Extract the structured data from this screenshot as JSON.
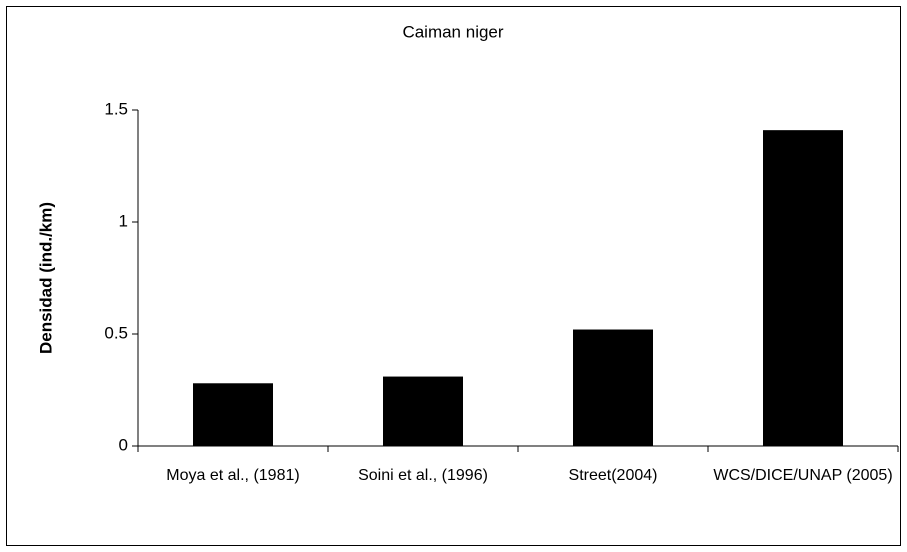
{
  "chart_data": {
    "type": "bar",
    "title": "Caiman niger",
    "y_label": "Densidad (ind./km)",
    "categories": [
      "Moya et al., (1981)",
      "Soini et al., (1996)",
      "Street(2004)",
      "WCS/DICE/UNAP (2005)"
    ],
    "values": [
      0.28,
      0.31,
      0.52,
      1.41
    ],
    "color": "#000000",
    "ylim": [
      0,
      1.5
    ],
    "yticks": [
      0,
      0.5,
      1,
      1.5
    ],
    "grid": false
  }
}
